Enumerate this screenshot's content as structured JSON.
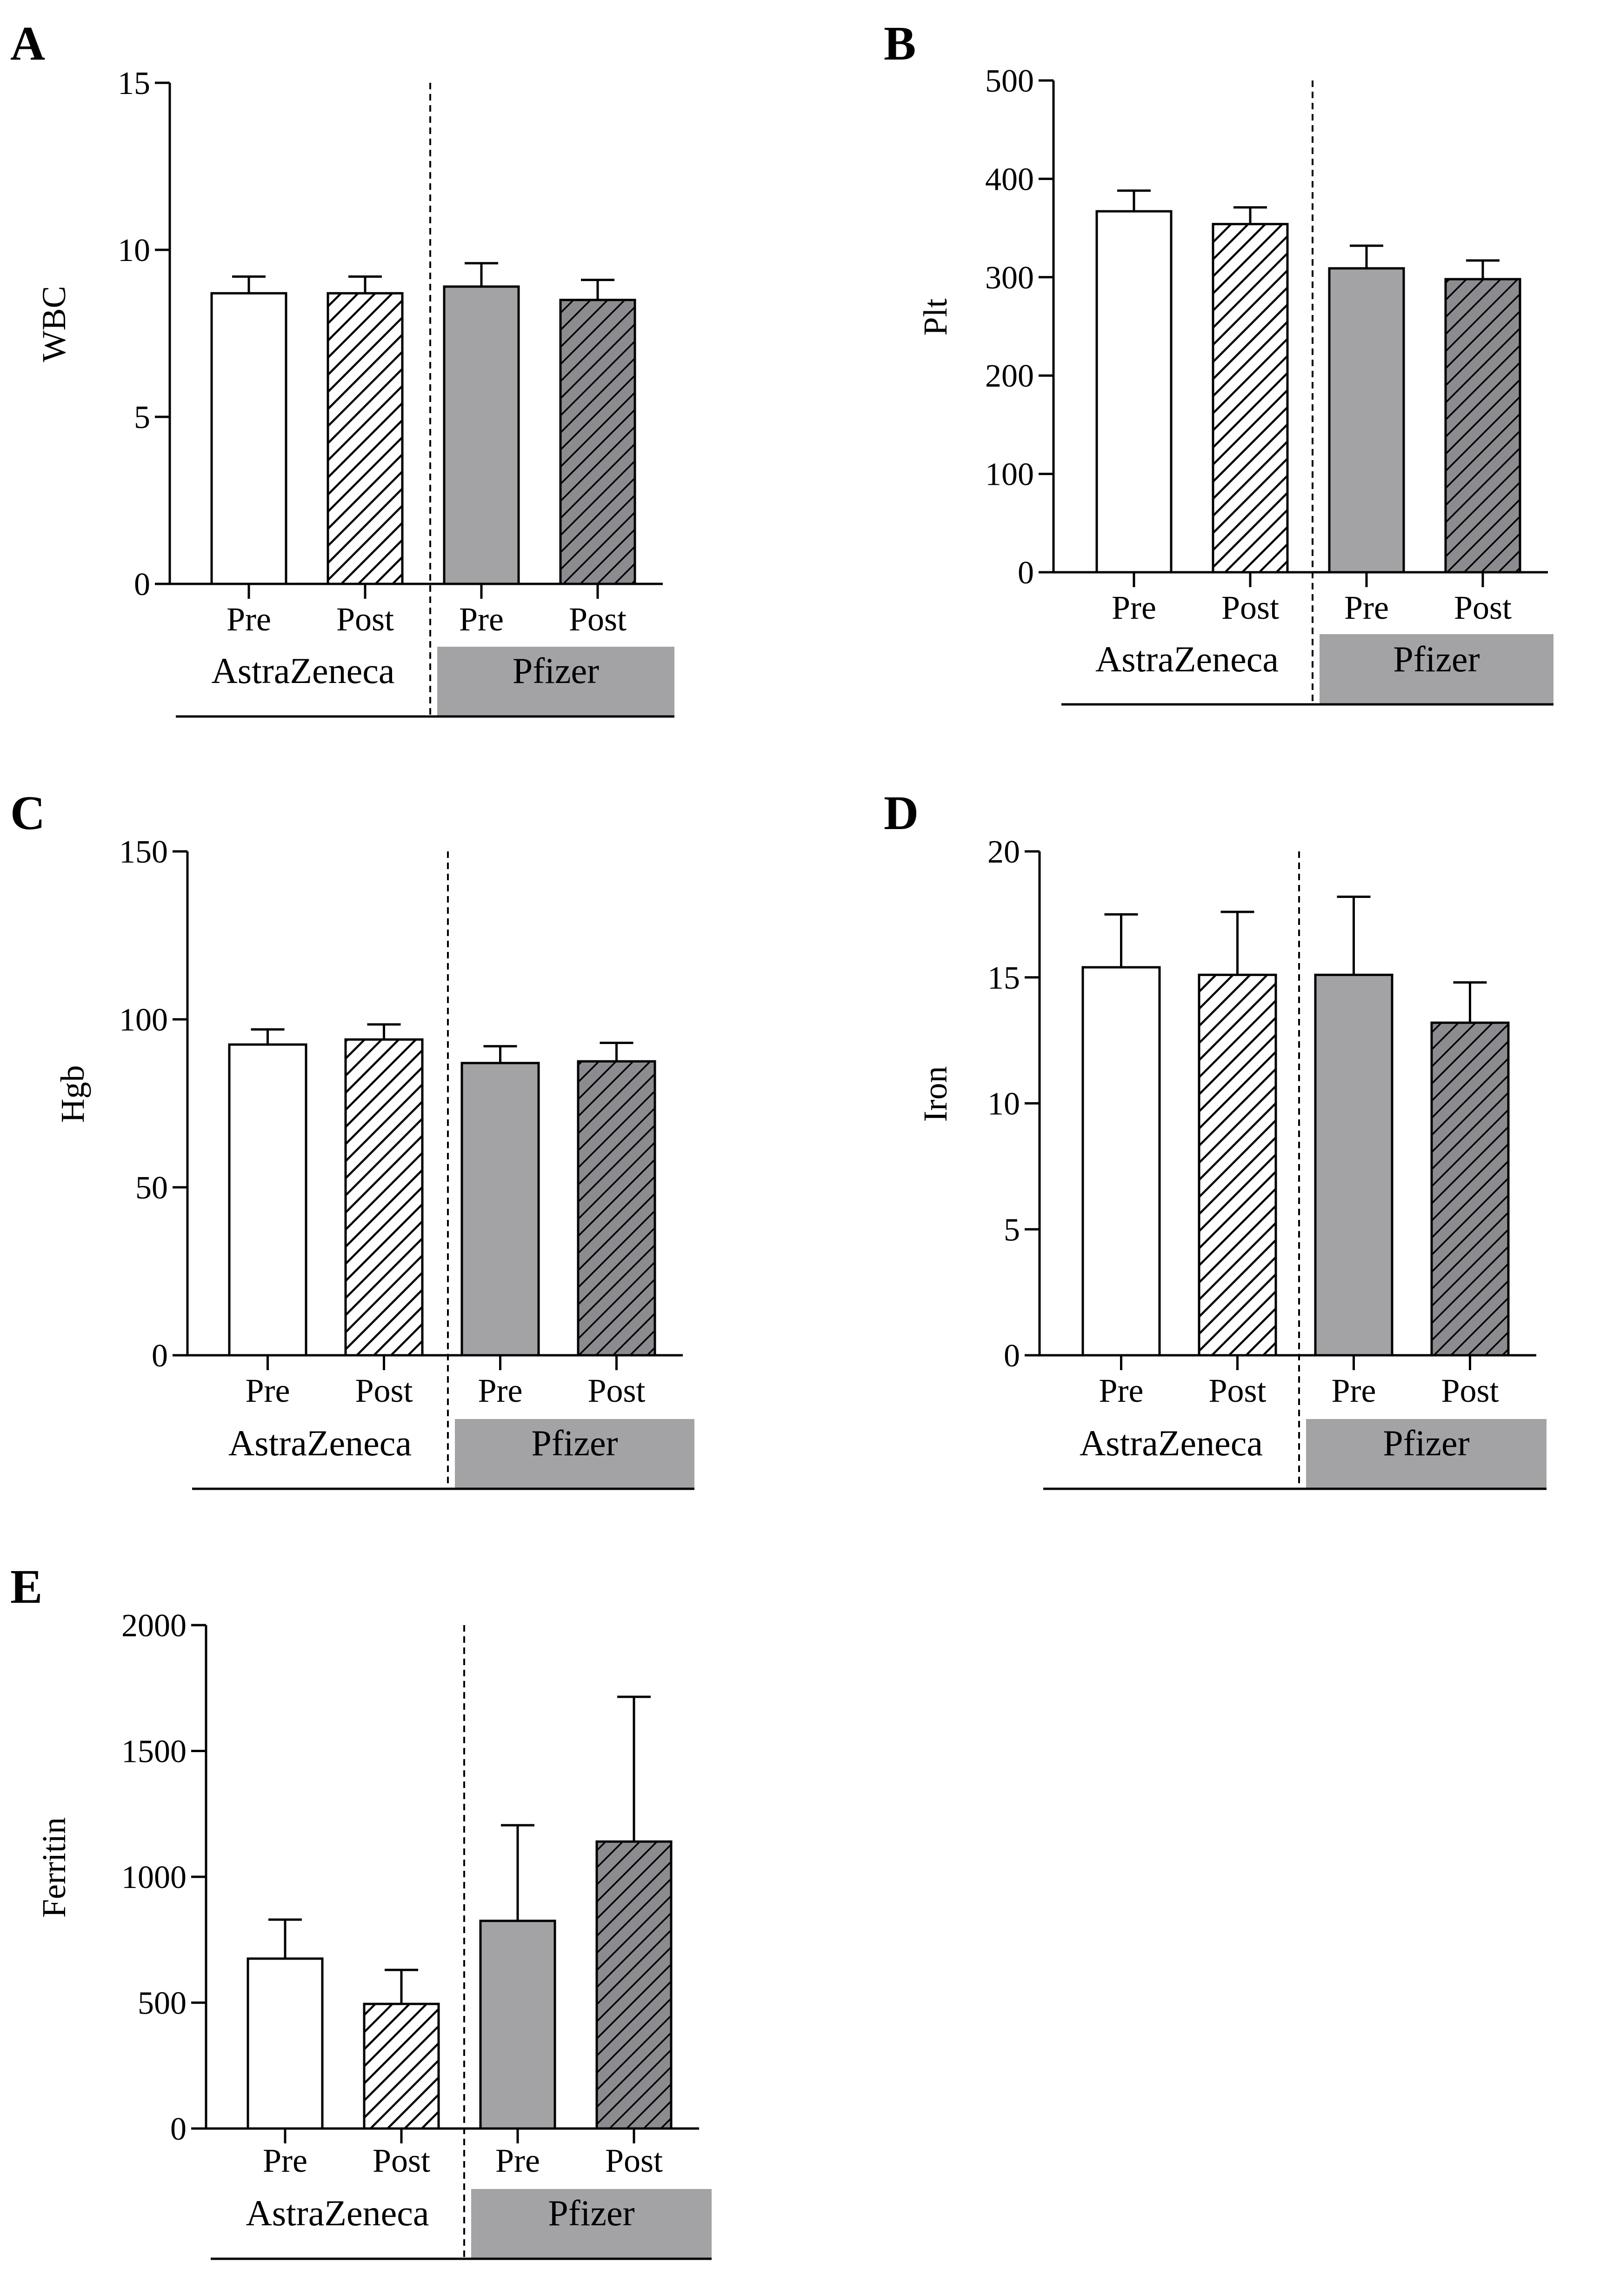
{
  "colors": {
    "pfizer_fill": "#a3a3a6",
    "pfizer_hatched_fill": "#8c8c90",
    "astrazeneca_pre_fill": "#ffffff",
    "stroke": "#000000"
  },
  "chart_data": [
    {
      "id": "A",
      "type": "bar",
      "panel_label": "A",
      "ylabel": "WBC",
      "ylim": [
        0,
        15
      ],
      "yticks": [
        0,
        5,
        10,
        15
      ],
      "yticklabels": [
        "0",
        "5",
        "10",
        "15"
      ],
      "categories": [
        "Pre",
        "Post",
        "Pre",
        "Post"
      ],
      "groups": [
        "AstraZeneca",
        "AstraZeneca",
        "Pfizer",
        "Pfizer"
      ],
      "group_labels": {
        "astrazeneca": "AstraZeneca",
        "pfizer": "Pfizer"
      },
      "values": [
        8.7,
        8.7,
        8.9,
        8.5
      ],
      "error_upper": [
        9.2,
        9.2,
        9.6,
        9.1
      ]
    },
    {
      "id": "B",
      "type": "bar",
      "panel_label": "B",
      "ylabel": "Plt",
      "ylim": [
        0,
        500
      ],
      "yticks": [
        0,
        100,
        200,
        300,
        400,
        500
      ],
      "yticklabels": [
        "0",
        "100",
        "200",
        "300",
        "400",
        "500"
      ],
      "categories": [
        "Pre",
        "Post",
        "Pre",
        "Post"
      ],
      "groups": [
        "AstraZeneca",
        "AstraZeneca",
        "Pfizer",
        "Pfizer"
      ],
      "group_labels": {
        "astrazeneca": "AstraZeneca",
        "pfizer": "Pfizer"
      },
      "values": [
        367,
        354,
        309,
        298
      ],
      "error_upper": [
        388,
        371,
        332,
        317
      ]
    },
    {
      "id": "C",
      "type": "bar",
      "panel_label": "C",
      "ylabel": "Hgb",
      "ylim": [
        0,
        150
      ],
      "yticks": [
        0,
        50,
        100,
        150
      ],
      "yticklabels": [
        "0",
        "50",
        "100",
        "150"
      ],
      "categories": [
        "Pre",
        "Post",
        "Pre",
        "Post"
      ],
      "groups": [
        "AstraZeneca",
        "AstraZeneca",
        "Pfizer",
        "Pfizer"
      ],
      "group_labels": {
        "astrazeneca": "AstraZeneca",
        "pfizer": "Pfizer"
      },
      "values": [
        92.5,
        94,
        87,
        87.5
      ],
      "error_upper": [
        97,
        98.5,
        92,
        93
      ]
    },
    {
      "id": "D",
      "type": "bar",
      "panel_label": "D",
      "ylabel": "Iron",
      "ylim": [
        0,
        20
      ],
      "yticks": [
        0,
        5,
        10,
        15,
        20
      ],
      "yticklabels": [
        "0",
        "5",
        "10",
        "15",
        "20"
      ],
      "categories": [
        "Pre",
        "Post",
        "Pre",
        "Post"
      ],
      "groups": [
        "AstraZeneca",
        "AstraZeneca",
        "Pfizer",
        "Pfizer"
      ],
      "group_labels": {
        "astrazeneca": "AstraZeneca",
        "pfizer": "Pfizer"
      },
      "values": [
        15.4,
        15.1,
        15.1,
        13.2
      ],
      "error_upper": [
        17.5,
        17.6,
        18.2,
        14.8
      ]
    },
    {
      "id": "E",
      "type": "bar",
      "panel_label": "E",
      "ylabel": "Ferritin",
      "ylim": [
        0,
        2000
      ],
      "yticks": [
        0,
        500,
        1000,
        1500,
        2000
      ],
      "yticklabels": [
        "0",
        "500",
        "1000",
        "1500",
        "2000"
      ],
      "categories": [
        "Pre",
        "Post",
        "Pre",
        "Post"
      ],
      "groups": [
        "AstraZeneca",
        "AstraZeneca",
        "Pfizer",
        "Pfizer"
      ],
      "group_labels": {
        "astrazeneca": "AstraZeneca",
        "pfizer": "Pfizer"
      },
      "values": [
        675,
        495,
        825,
        1140
      ],
      "error_upper": [
        830,
        630,
        1205,
        1715
      ]
    }
  ]
}
